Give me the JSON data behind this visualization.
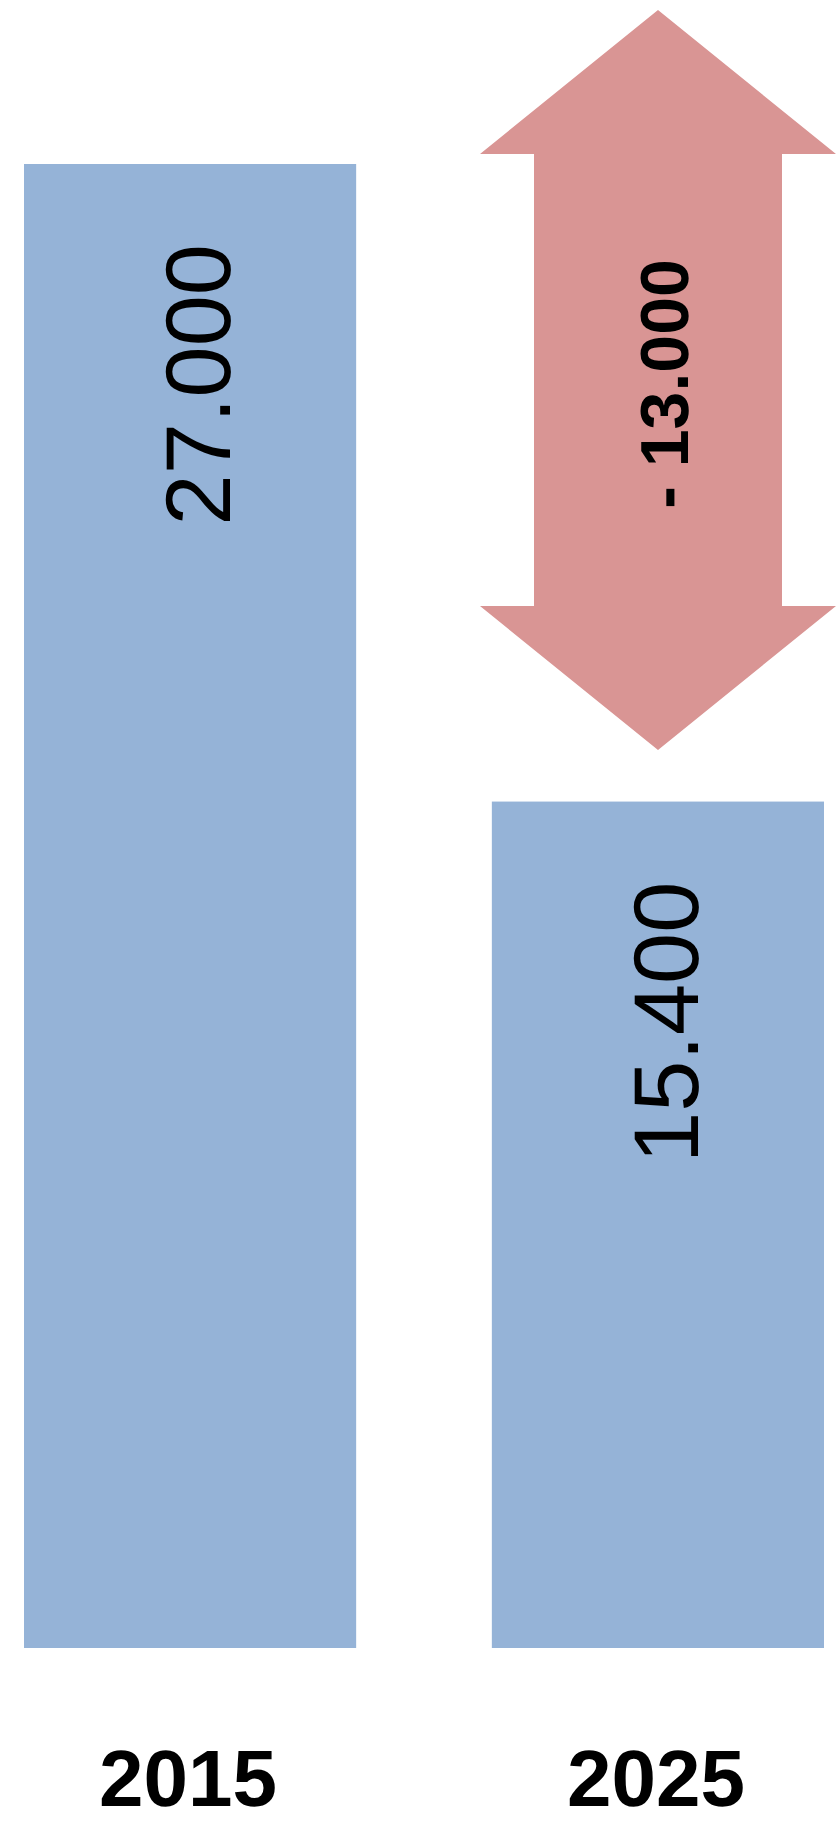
{
  "chart_data": {
    "type": "bar",
    "categories": [
      "2015",
      "2025"
    ],
    "values": [
      27000,
      15400
    ],
    "value_labels": [
      "27.000",
      "15.400"
    ],
    "color": "#95b3d7",
    "annotations": [
      "- 13.000"
    ]
  }
}
